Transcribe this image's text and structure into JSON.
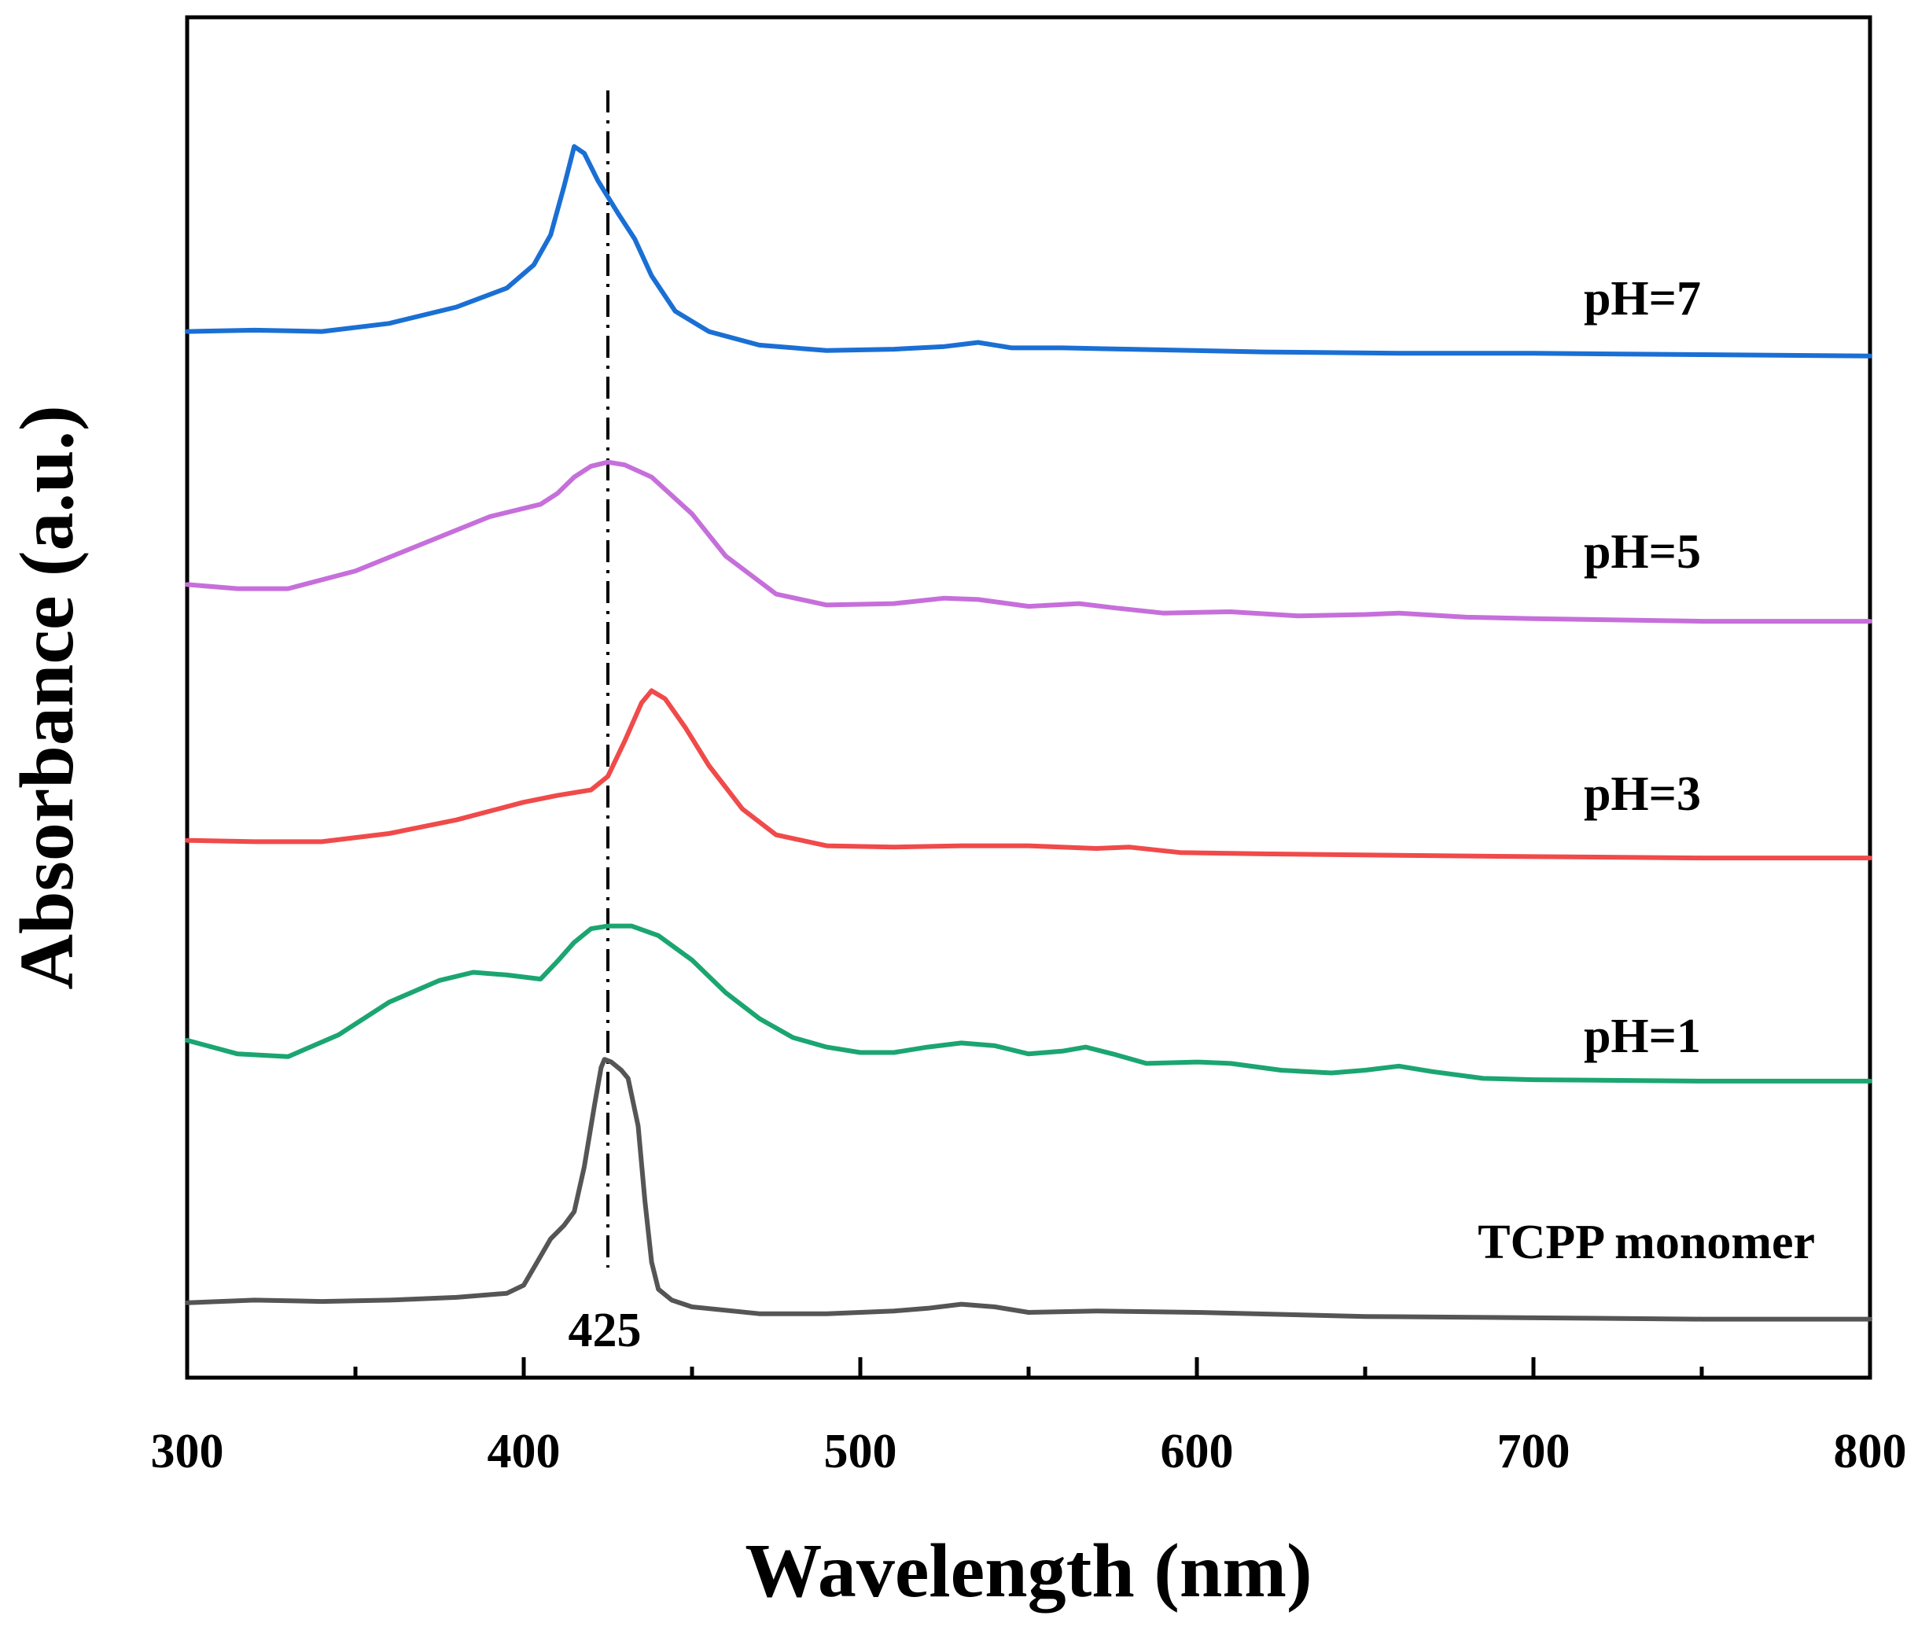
{
  "chart_data": {
    "type": "line",
    "title": "",
    "xlabel": "Wavelength (nm)",
    "ylabel": "Absorbance (a.u.)",
    "xlim": [
      300,
      800
    ],
    "ylim": [
      0,
      1
    ],
    "x_ticks": [
      300,
      400,
      500,
      600,
      700,
      800
    ],
    "x_minor_step": 50,
    "y_ticks_shown": false,
    "grid": false,
    "legend": "labels placed beside each curve on the right",
    "reference_line": {
      "x": 425,
      "style": "dash-dot",
      "label": "425"
    },
    "series": [
      {
        "name": "TCPP monomer",
        "color": "#555555",
        "points": [
          [
            300,
            0.055
          ],
          [
            320,
            0.057
          ],
          [
            340,
            0.056
          ],
          [
            360,
            0.057
          ],
          [
            380,
            0.059
          ],
          [
            395,
            0.062
          ],
          [
            400,
            0.068
          ],
          [
            404,
            0.085
          ],
          [
            408,
            0.102
          ],
          [
            412,
            0.112
          ],
          [
            415,
            0.122
          ],
          [
            418,
            0.155
          ],
          [
            421,
            0.2
          ],
          [
            423,
            0.228
          ],
          [
            424,
            0.234
          ],
          [
            426,
            0.232
          ],
          [
            429,
            0.226
          ],
          [
            431,
            0.22
          ],
          [
            434,
            0.185
          ],
          [
            436,
            0.13
          ],
          [
            438,
            0.085
          ],
          [
            440,
            0.065
          ],
          [
            444,
            0.057
          ],
          [
            450,
            0.052
          ],
          [
            470,
            0.047
          ],
          [
            490,
            0.047
          ],
          [
            510,
            0.049
          ],
          [
            520,
            0.051
          ],
          [
            530,
            0.054
          ],
          [
            540,
            0.052
          ],
          [
            550,
            0.048
          ],
          [
            570,
            0.049
          ],
          [
            600,
            0.048
          ],
          [
            650,
            0.045
          ],
          [
            700,
            0.044
          ],
          [
            750,
            0.043
          ],
          [
            800,
            0.043
          ]
        ]
      },
      {
        "name": "pH=1",
        "color": "#1ba571",
        "points": [
          [
            300,
            0.248
          ],
          [
            315,
            0.238
          ],
          [
            330,
            0.236
          ],
          [
            345,
            0.252
          ],
          [
            360,
            0.276
          ],
          [
            375,
            0.292
          ],
          [
            385,
            0.298
          ],
          [
            395,
            0.296
          ],
          [
            405,
            0.293
          ],
          [
            410,
            0.306
          ],
          [
            415,
            0.32
          ],
          [
            420,
            0.33
          ],
          [
            425,
            0.332
          ],
          [
            432,
            0.332
          ],
          [
            440,
            0.325
          ],
          [
            450,
            0.307
          ],
          [
            460,
            0.283
          ],
          [
            470,
            0.264
          ],
          [
            480,
            0.25
          ],
          [
            490,
            0.243
          ],
          [
            500,
            0.239
          ],
          [
            510,
            0.239
          ],
          [
            520,
            0.243
          ],
          [
            530,
            0.246
          ],
          [
            540,
            0.244
          ],
          [
            550,
            0.238
          ],
          [
            560,
            0.24
          ],
          [
            567,
            0.243
          ],
          [
            575,
            0.238
          ],
          [
            585,
            0.231
          ],
          [
            600,
            0.232
          ],
          [
            610,
            0.231
          ],
          [
            625,
            0.226
          ],
          [
            640,
            0.224
          ],
          [
            650,
            0.226
          ],
          [
            660,
            0.229
          ],
          [
            670,
            0.225
          ],
          [
            685,
            0.22
          ],
          [
            700,
            0.219
          ],
          [
            750,
            0.218
          ],
          [
            800,
            0.218
          ]
        ]
      },
      {
        "name": "pH=3",
        "color": "#f04a4a",
        "points": [
          [
            300,
            0.395
          ],
          [
            320,
            0.394
          ],
          [
            340,
            0.394
          ],
          [
            360,
            0.4
          ],
          [
            380,
            0.41
          ],
          [
            400,
            0.423
          ],
          [
            410,
            0.428
          ],
          [
            420,
            0.432
          ],
          [
            425,
            0.442
          ],
          [
            430,
            0.468
          ],
          [
            435,
            0.496
          ],
          [
            438,
            0.505
          ],
          [
            442,
            0.499
          ],
          [
            448,
            0.478
          ],
          [
            455,
            0.45
          ],
          [
            465,
            0.418
          ],
          [
            475,
            0.399
          ],
          [
            490,
            0.391
          ],
          [
            510,
            0.39
          ],
          [
            530,
            0.391
          ],
          [
            550,
            0.391
          ],
          [
            570,
            0.389
          ],
          [
            580,
            0.39
          ],
          [
            595,
            0.386
          ],
          [
            620,
            0.385
          ],
          [
            660,
            0.384
          ],
          [
            700,
            0.383
          ],
          [
            750,
            0.382
          ],
          [
            800,
            0.382
          ]
        ]
      },
      {
        "name": "pH=5",
        "color": "#c66fdb",
        "points": [
          [
            300,
            0.583
          ],
          [
            315,
            0.58
          ],
          [
            330,
            0.58
          ],
          [
            350,
            0.593
          ],
          [
            370,
            0.613
          ],
          [
            390,
            0.633
          ],
          [
            405,
            0.642
          ],
          [
            410,
            0.65
          ],
          [
            415,
            0.662
          ],
          [
            420,
            0.67
          ],
          [
            425,
            0.673
          ],
          [
            430,
            0.671
          ],
          [
            438,
            0.662
          ],
          [
            450,
            0.635
          ],
          [
            460,
            0.604
          ],
          [
            475,
            0.576
          ],
          [
            490,
            0.568
          ],
          [
            510,
            0.569
          ],
          [
            525,
            0.573
          ],
          [
            535,
            0.572
          ],
          [
            550,
            0.567
          ],
          [
            565,
            0.569
          ],
          [
            575,
            0.566
          ],
          [
            590,
            0.562
          ],
          [
            610,
            0.563
          ],
          [
            630,
            0.56
          ],
          [
            650,
            0.561
          ],
          [
            660,
            0.562
          ],
          [
            680,
            0.559
          ],
          [
            700,
            0.558
          ],
          [
            750,
            0.556
          ],
          [
            800,
            0.556
          ]
        ]
      },
      {
        "name": "pH=7",
        "color": "#1a6fd4",
        "points": [
          [
            300,
            0.769
          ],
          [
            320,
            0.77
          ],
          [
            340,
            0.769
          ],
          [
            360,
            0.775
          ],
          [
            380,
            0.787
          ],
          [
            395,
            0.801
          ],
          [
            403,
            0.818
          ],
          [
            408,
            0.84
          ],
          [
            412,
            0.876
          ],
          [
            415,
            0.905
          ],
          [
            418,
            0.9
          ],
          [
            422,
            0.88
          ],
          [
            428,
            0.856
          ],
          [
            433,
            0.837
          ],
          [
            438,
            0.81
          ],
          [
            445,
            0.784
          ],
          [
            455,
            0.769
          ],
          [
            470,
            0.759
          ],
          [
            490,
            0.755
          ],
          [
            510,
            0.756
          ],
          [
            525,
            0.758
          ],
          [
            535,
            0.761
          ],
          [
            545,
            0.757
          ],
          [
            560,
            0.757
          ],
          [
            580,
            0.756
          ],
          [
            620,
            0.754
          ],
          [
            660,
            0.753
          ],
          [
            700,
            0.753
          ],
          [
            750,
            0.752
          ],
          [
            800,
            0.751
          ]
        ]
      }
    ]
  }
}
